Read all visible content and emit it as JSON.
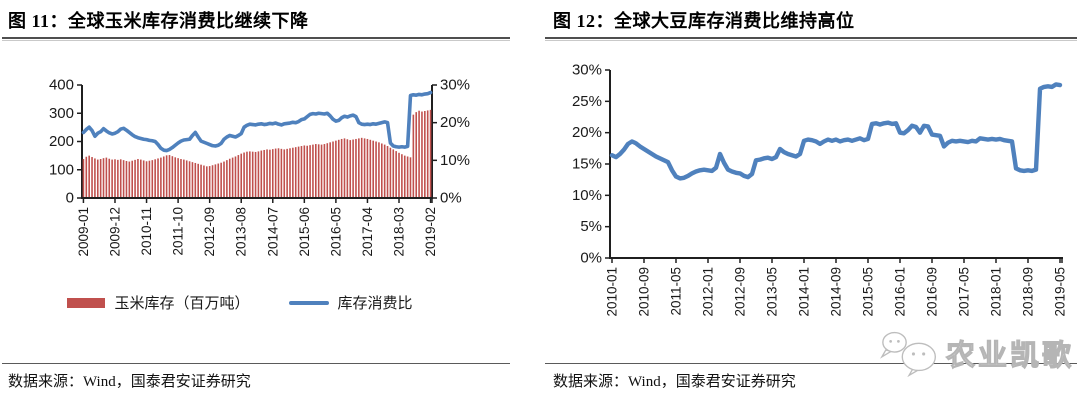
{
  "panels": [
    {
      "source": "数据来源：Wind，国泰君安证券研究"
    },
    {
      "source": "数据来源：Wind，国泰君安证券研究",
      "watermark": {
        "text": "农业凯歌",
        "icon": "chat-bubbles",
        "color": "#b5b5b5"
      }
    }
  ],
  "colors": {
    "bar": "#C0504D",
    "line": "#4F81BD",
    "axis": "#1f1f1f"
  },
  "chart_data": [
    {
      "id": "global-corn-stock-to-use",
      "type": "bar",
      "title": "图 11：全球玉米库存消费比继续下降",
      "x_tick_labels": [
        "2009-01",
        "2009-12",
        "2010-11",
        "2011-10",
        "2012-09",
        "2013-08",
        "2014-07",
        "2015-06",
        "2016-05",
        "2017-04",
        "2018-03",
        "2019-02"
      ],
      "x_tick_every": 11,
      "n_points": 122,
      "x_range_months": "2009-01 to 2019-02",
      "left_axis": {
        "ticks": [
          "400",
          "300",
          "200",
          "100",
          "0"
        ],
        "min": 0,
        "max": 400
      },
      "right_axis": {
        "ticks": [
          "30%",
          "20%",
          "10%",
          "0%"
        ],
        "min": 0,
        "max": 30
      },
      "grid": false,
      "legend_position": "bottom",
      "series": [
        {
          "name": "玉米库存（百万吨）",
          "type": "bar",
          "axis": "left",
          "color": "#C0504D",
          "values": [
            138,
            146,
            150,
            145,
            140,
            136,
            138,
            141,
            143,
            139,
            136,
            137,
            135,
            137,
            134,
            131,
            129,
            132,
            135,
            138,
            136,
            133,
            130,
            132,
            134,
            137,
            140,
            143,
            147,
            151,
            152,
            148,
            144,
            141,
            138,
            136,
            133,
            130,
            127,
            124,
            121,
            118,
            115,
            112,
            113,
            116,
            119,
            122,
            125,
            129,
            134,
            139,
            143,
            147,
            152,
            157,
            161,
            164,
            165,
            164,
            163,
            165,
            168,
            170,
            172,
            171,
            173,
            175,
            176,
            174,
            172,
            174,
            176,
            178,
            180,
            182,
            184,
            186,
            185,
            187,
            189,
            191,
            190,
            189,
            191,
            194,
            197,
            200,
            203,
            206,
            209,
            211,
            208,
            205,
            207,
            209,
            211,
            213,
            211,
            209,
            206,
            203,
            200,
            197,
            193,
            189,
            184,
            178,
            172,
            166,
            160,
            155,
            150,
            147,
            144,
            295,
            304,
            309,
            306,
            308,
            310,
            312
          ]
        },
        {
          "name": "库存消费比",
          "type": "line",
          "axis": "right",
          "color": "#4F81BD",
          "values": [
            17.4,
            18.2,
            18.8,
            17.9,
            16.4,
            17.2,
            17.6,
            18.4,
            17.8,
            17.3,
            17.0,
            17.2,
            17.6,
            18.3,
            18.5,
            18.0,
            17.4,
            16.8,
            16.3,
            16.0,
            15.8,
            15.6,
            15.5,
            15.3,
            15.2,
            15.0,
            14.2,
            13.2,
            12.7,
            12.6,
            12.9,
            13.4,
            14.0,
            14.6,
            15.1,
            15.4,
            15.5,
            15.6,
            16.6,
            17.4,
            16.2,
            15.1,
            14.8,
            14.5,
            14.2,
            13.9,
            13.8,
            14.0,
            14.5,
            15.6,
            16.2,
            16.6,
            16.4,
            16.2,
            16.6,
            17.1,
            18.8,
            19.3,
            19.6,
            19.5,
            19.4,
            19.6,
            19.7,
            19.5,
            19.6,
            19.8,
            19.7,
            19.9,
            19.6,
            19.4,
            19.7,
            19.8,
            19.9,
            20.1,
            20.0,
            20.3,
            20.8,
            21.0,
            21.6,
            22.2,
            22.4,
            22.3,
            22.5,
            22.4,
            22.3,
            22.5,
            21.8,
            20.9,
            20.4,
            20.6,
            21.3,
            21.7,
            21.5,
            21.8,
            22.0,
            21.6,
            20.0,
            19.6,
            19.5,
            19.6,
            19.5,
            19.7,
            19.6,
            19.8,
            20.0,
            20.2,
            20.0,
            14.6,
            13.8,
            13.6,
            13.5,
            13.6,
            13.5,
            13.7,
            27.2,
            27.4,
            27.3,
            27.5,
            27.4,
            27.6,
            27.7,
            28.0
          ]
        }
      ]
    },
    {
      "id": "global-soybean-stock-to-use",
      "type": "line",
      "title": "图 12：全球大豆库存消费比维持高位",
      "x_tick_labels": [
        "2010-01",
        "2010-09",
        "2011-05",
        "2012-01",
        "2012-09",
        "2013-05",
        "2014-01",
        "2014-09",
        "2015-05",
        "2016-01",
        "2016-09",
        "2017-05",
        "2018-01",
        "2018-09",
        "2019-05"
      ],
      "x_tick_every": 8,
      "n_points": 113,
      "x_range_months": "2010-01 to 2019-05",
      "left_axis": {
        "ticks": [
          "30%",
          "25%",
          "20%",
          "15%",
          "10%",
          "5%",
          "0%"
        ],
        "min": 0,
        "max": 30
      },
      "grid": false,
      "series": [
        {
          "name": "库存消费比",
          "type": "line",
          "axis": "left",
          "color": "#4F81BD",
          "values": [
            16.4,
            16.1,
            16.6,
            17.3,
            18.2,
            18.6,
            18.3,
            17.8,
            17.4,
            17.0,
            16.6,
            16.2,
            15.9,
            15.6,
            15.3,
            14.0,
            13.0,
            12.7,
            12.8,
            13.1,
            13.5,
            13.8,
            14.0,
            14.1,
            14.0,
            13.9,
            14.4,
            16.6,
            15.2,
            14.1,
            13.8,
            13.6,
            13.5,
            13.1,
            12.9,
            13.4,
            15.6,
            15.7,
            15.9,
            16.0,
            15.8,
            16.1,
            17.4,
            16.9,
            16.6,
            16.4,
            16.2,
            16.6,
            18.7,
            18.9,
            18.8,
            18.6,
            18.2,
            18.6,
            18.9,
            18.7,
            18.9,
            18.6,
            18.8,
            18.9,
            18.7,
            18.9,
            19.1,
            18.8,
            19.0,
            21.4,
            21.5,
            21.3,
            21.5,
            21.6,
            21.4,
            21.5,
            20.0,
            19.9,
            20.4,
            21.1,
            20.9,
            20.0,
            21.1,
            21.0,
            19.7,
            19.6,
            19.5,
            17.8,
            18.4,
            18.7,
            18.6,
            18.7,
            18.6,
            18.5,
            18.7,
            18.6,
            19.1,
            19.0,
            18.9,
            19.0,
            18.9,
            19.0,
            18.8,
            18.7,
            18.6,
            14.3,
            14.0,
            13.9,
            14.0,
            13.9,
            14.1,
            27.0,
            27.3,
            27.4,
            27.3,
            27.7,
            27.6
          ]
        }
      ]
    }
  ]
}
